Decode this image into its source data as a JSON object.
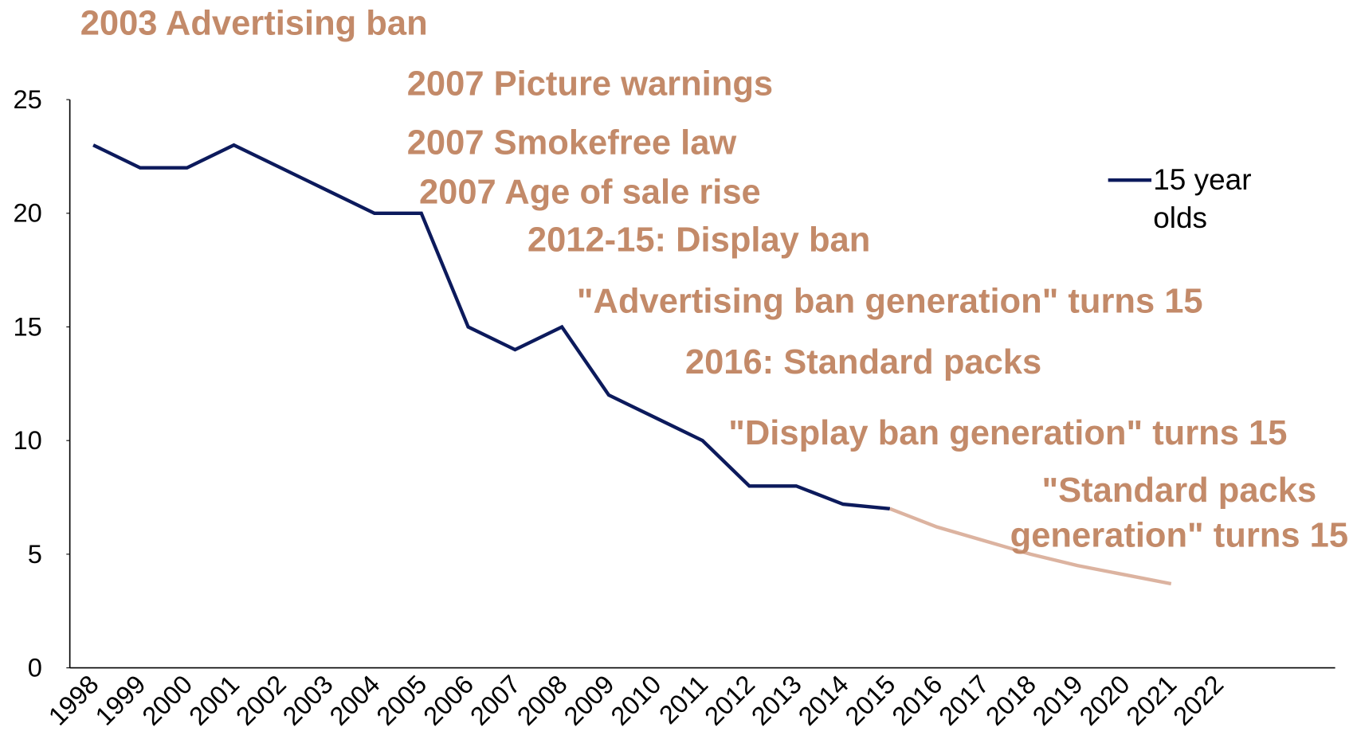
{
  "chart_data": {
    "type": "line",
    "categories": [
      "1998",
      "1999",
      "2000",
      "2001",
      "2002",
      "2003",
      "2004",
      "2005",
      "2006",
      "2007",
      "2008",
      "2009",
      "2010",
      "2011",
      "2012",
      "2013",
      "2014",
      "2015",
      "2016",
      "2017",
      "2018",
      "2019",
      "2020",
      "2021",
      "2022",
      null,
      null
    ],
    "series": [
      {
        "name": "15 year olds",
        "color": "#0c1a5c",
        "values": [
          23,
          22,
          22,
          23,
          22,
          21,
          20,
          20,
          15,
          14,
          15,
          12,
          11,
          10,
          8,
          8,
          7.2,
          7,
          null,
          null,
          null,
          null,
          null,
          null,
          null,
          null,
          null
        ]
      },
      {
        "color": "#dcb3a0",
        "values": [
          null,
          null,
          null,
          null,
          null,
          null,
          null,
          null,
          null,
          null,
          null,
          null,
          null,
          null,
          null,
          null,
          null,
          7,
          6.2,
          5.6,
          5.0,
          4.5,
          4.1,
          3.7,
          null,
          null,
          null
        ]
      }
    ],
    "ylim": [
      0,
      25
    ],
    "yticks": [
      0,
      5,
      10,
      15,
      20,
      25
    ],
    "annotations": [
      "2003 Advertising ban",
      "2007 Picture warnings",
      "2007 Smokefree law",
      "2007 Age of sale rise",
      "2012-15: Display ban",
      "\"Advertising ban generation\" turns 15",
      "2016: Standard packs",
      "\"Display ban generation\" turns 15",
      "\"Standard packs generation\" turns 15"
    ]
  }
}
